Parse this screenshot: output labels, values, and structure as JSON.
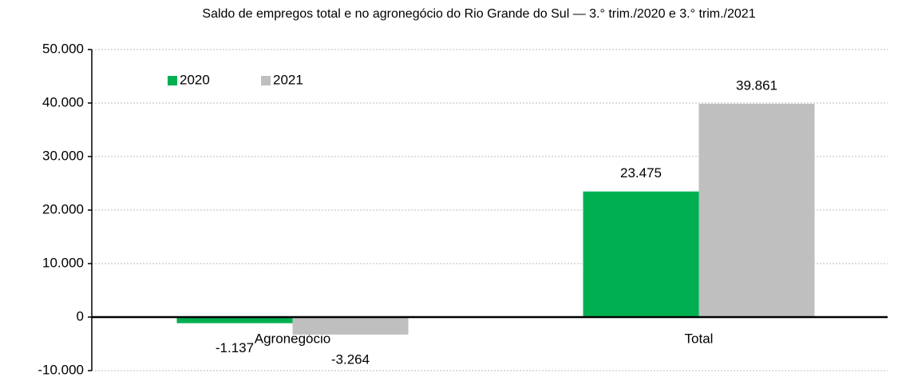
{
  "chart_data": {
    "type": "bar",
    "title": "Saldo de empregos total e no agronegócio do Rio Grande do Sul — 3.° trim./2020 e 3.° trim./2021",
    "categories": [
      "Agronegócio",
      "Total"
    ],
    "series": [
      {
        "name": "2020",
        "color": "#00b050",
        "values": [
          -1137,
          23475
        ],
        "value_labels": [
          "-1.137",
          "23.475"
        ]
      },
      {
        "name": "2021",
        "color": "#bfbfbf",
        "values": [
          -3264,
          39861
        ],
        "value_labels": [
          "-3.264",
          "39.861"
        ]
      }
    ],
    "ylim": [
      -10000,
      50000
    ],
    "yticks": [
      {
        "value": -10000,
        "label": "-10.000"
      },
      0,
      {
        "value": 10000,
        "label": "10.000"
      },
      {
        "value": 20000,
        "label": "20.000"
      },
      {
        "value": 30000,
        "label": "30.000"
      },
      {
        "value": 40000,
        "label": "40.000"
      },
      {
        "value": 50000,
        "label": "50.000"
      }
    ],
    "grid": true,
    "legend": "top-left"
  }
}
